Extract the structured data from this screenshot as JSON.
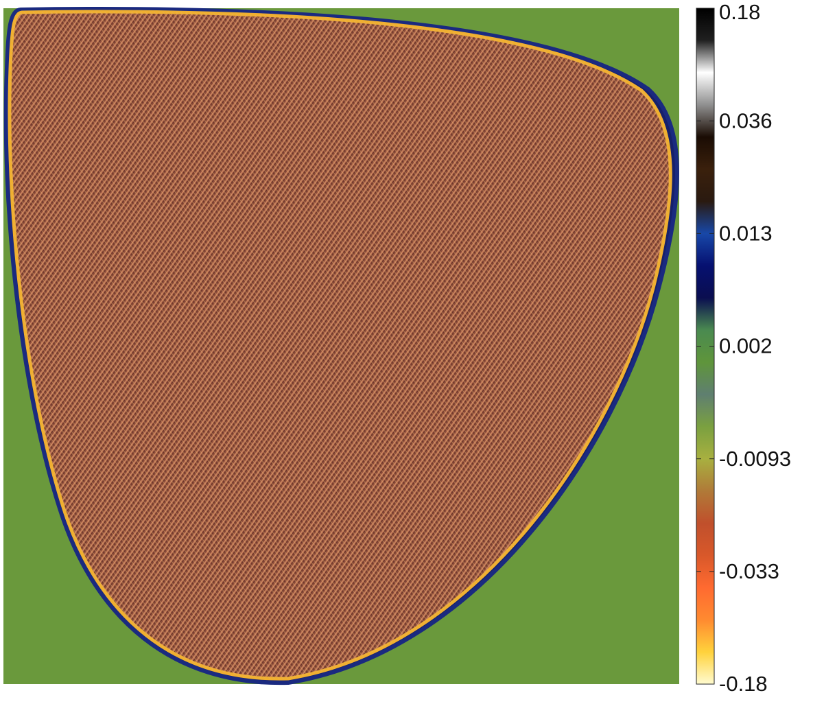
{
  "chart_data": {
    "type": "heatmap",
    "colorbar": {
      "ticks": [
        -0.18,
        -0.033,
        -0.0093,
        0.002,
        0.013,
        0.036,
        0.18
      ],
      "colormap": [
        "#fffbd0",
        "#ffd23c",
        "#ff8a30",
        "#ff6a30",
        "#d8582a",
        "#c0502c",
        "#b07a38",
        "#a8b040",
        "#7aa040",
        "#5f7f70",
        "#5f953b",
        "#4a8a50",
        "#0a0e50",
        "#061070",
        "#1848a8",
        "#2a1a10",
        "#3a200c",
        "#1a0c04",
        "#909090",
        "#ffffff",
        "#202020",
        "#000000"
      ]
    }
  }
}
